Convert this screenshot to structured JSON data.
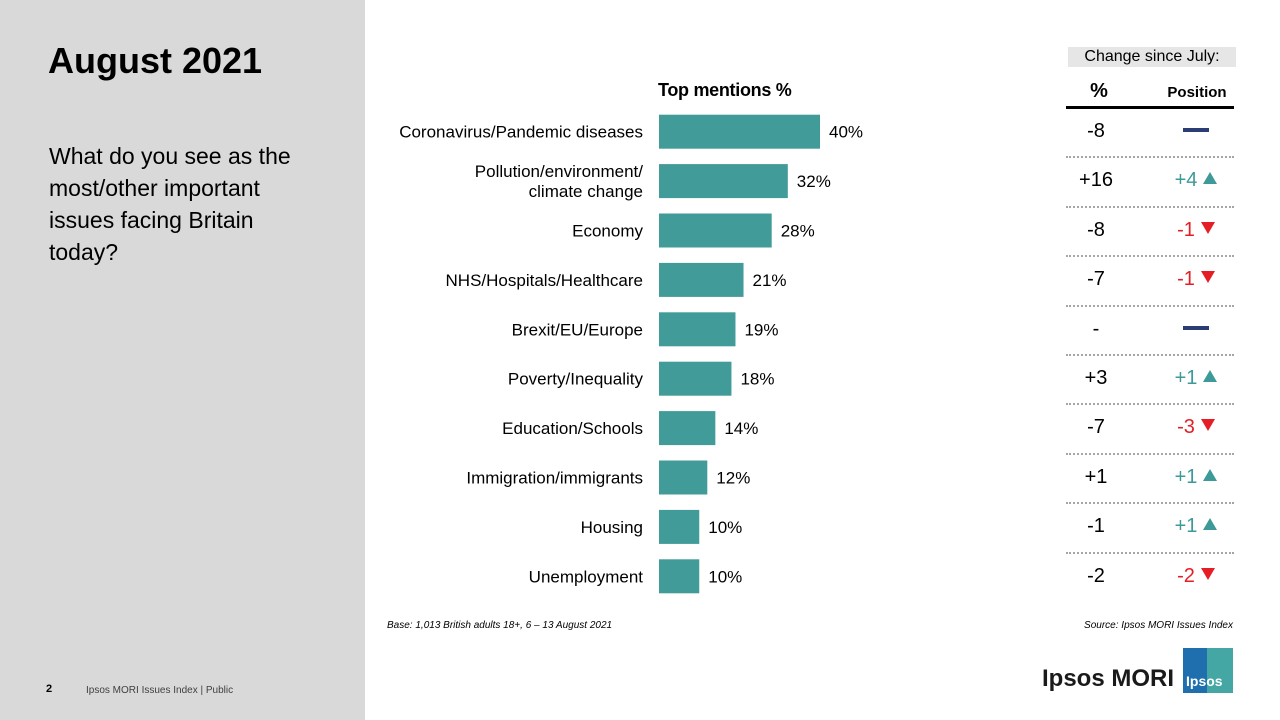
{
  "page": {
    "title": "August 2021",
    "question": "What do you see as the most/other important issues facing Britain today?",
    "page_number": "2",
    "footer": "Ipsos MORI Issues Index | Public",
    "base_note": "Base: 1,013 British adults 18+, 6 – 13 August 2021",
    "source_note": "Source: Ipsos MORI Issues Index",
    "brand": "Ipsos MORI",
    "logo_text": "Ipsos"
  },
  "change": {
    "header": "Change since July:",
    "col_pct": "%",
    "col_position": "Position",
    "rows": [
      {
        "pct": "-8",
        "position": "",
        "dir": "same"
      },
      {
        "pct": "+16",
        "position": "+4",
        "dir": "up"
      },
      {
        "pct": "-8",
        "position": "-1",
        "dir": "down"
      },
      {
        "pct": "-7",
        "position": "-1",
        "dir": "down"
      },
      {
        "pct": "-",
        "position": "",
        "dir": "same"
      },
      {
        "pct": "+3",
        "position": "+1",
        "dir": "up"
      },
      {
        "pct": "-7",
        "position": "-3",
        "dir": "down"
      },
      {
        "pct": "+1",
        "position": "+1",
        "dir": "up"
      },
      {
        "pct": "-1",
        "position": "+1",
        "dir": "up"
      },
      {
        "pct": "-2",
        "position": "-2",
        "dir": "down"
      }
    ]
  },
  "colors": {
    "bar": "#419b98",
    "up": "#3e9a98",
    "down": "#e51e25",
    "same": "#2b3d75"
  },
  "chart_data": {
    "type": "bar",
    "orientation": "horizontal",
    "title": "Top mentions %",
    "categories": [
      "Coronavirus/Pandemic diseases",
      "Pollution/environment/ climate change",
      "Economy",
      "NHS/Hospitals/Healthcare",
      "Brexit/EU/Europe",
      "Poverty/Inequality",
      "Education/Schools",
      "Immigration/immigrants",
      "Housing",
      "Unemployment"
    ],
    "values": [
      40,
      32,
      28,
      21,
      19,
      18,
      14,
      12,
      10,
      10
    ],
    "value_labels": [
      "40%",
      "32%",
      "28%",
      "21%",
      "19%",
      "18%",
      "14%",
      "12%",
      "10%",
      "10%"
    ],
    "xlim": [
      0,
      40
    ],
    "grid": false
  }
}
